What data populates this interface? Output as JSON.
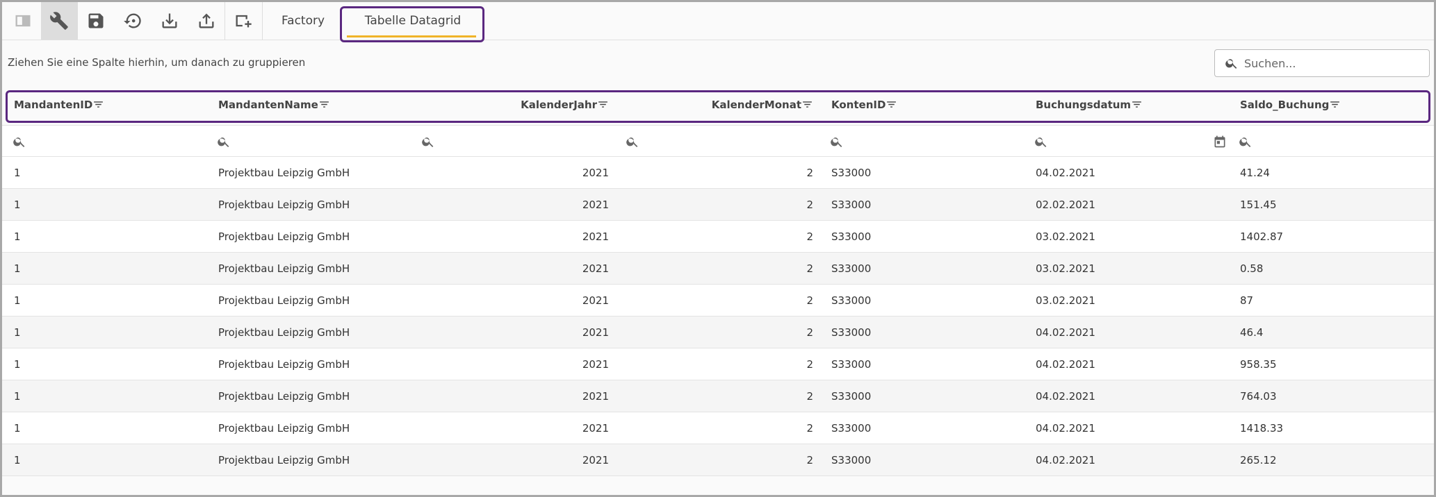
{
  "toolbar": {
    "tabs": [
      "Factory",
      "Tabelle Datagrid"
    ]
  },
  "group_hint": "Ziehen Sie eine Spalte hierhin, um danach zu gruppieren",
  "search_placeholder": "Suchen...",
  "table": {
    "columns": [
      "MandantenID",
      "MandantenName",
      "KalenderJahr",
      "KalenderMonat",
      "KontenID",
      "Buchungsdatum",
      "Saldo_Buchung"
    ],
    "rows": [
      [
        1,
        "Projektbau Leipzig GmbH",
        2021,
        2,
        "S33000",
        "04.02.2021",
        41.24
      ],
      [
        1,
        "Projektbau Leipzig GmbH",
        2021,
        2,
        "S33000",
        "02.02.2021",
        151.45
      ],
      [
        1,
        "Projektbau Leipzig GmbH",
        2021,
        2,
        "S33000",
        "03.02.2021",
        1402.87
      ],
      [
        1,
        "Projektbau Leipzig GmbH",
        2021,
        2,
        "S33000",
        "03.02.2021",
        0.58
      ],
      [
        1,
        "Projektbau Leipzig GmbH",
        2021,
        2,
        "S33000",
        "03.02.2021",
        87
      ],
      [
        1,
        "Projektbau Leipzig GmbH",
        2021,
        2,
        "S33000",
        "04.02.2021",
        46.4
      ],
      [
        1,
        "Projektbau Leipzig GmbH",
        2021,
        2,
        "S33000",
        "04.02.2021",
        958.35
      ],
      [
        1,
        "Projektbau Leipzig GmbH",
        2021,
        2,
        "S33000",
        "04.02.2021",
        764.03
      ],
      [
        1,
        "Projektbau Leipzig GmbH",
        2021,
        2,
        "S33000",
        "04.02.2021",
        1418.33
      ],
      [
        1,
        "Projektbau Leipzig GmbH",
        2021,
        2,
        "S33000",
        "04.02.2021",
        265.12
      ]
    ]
  }
}
